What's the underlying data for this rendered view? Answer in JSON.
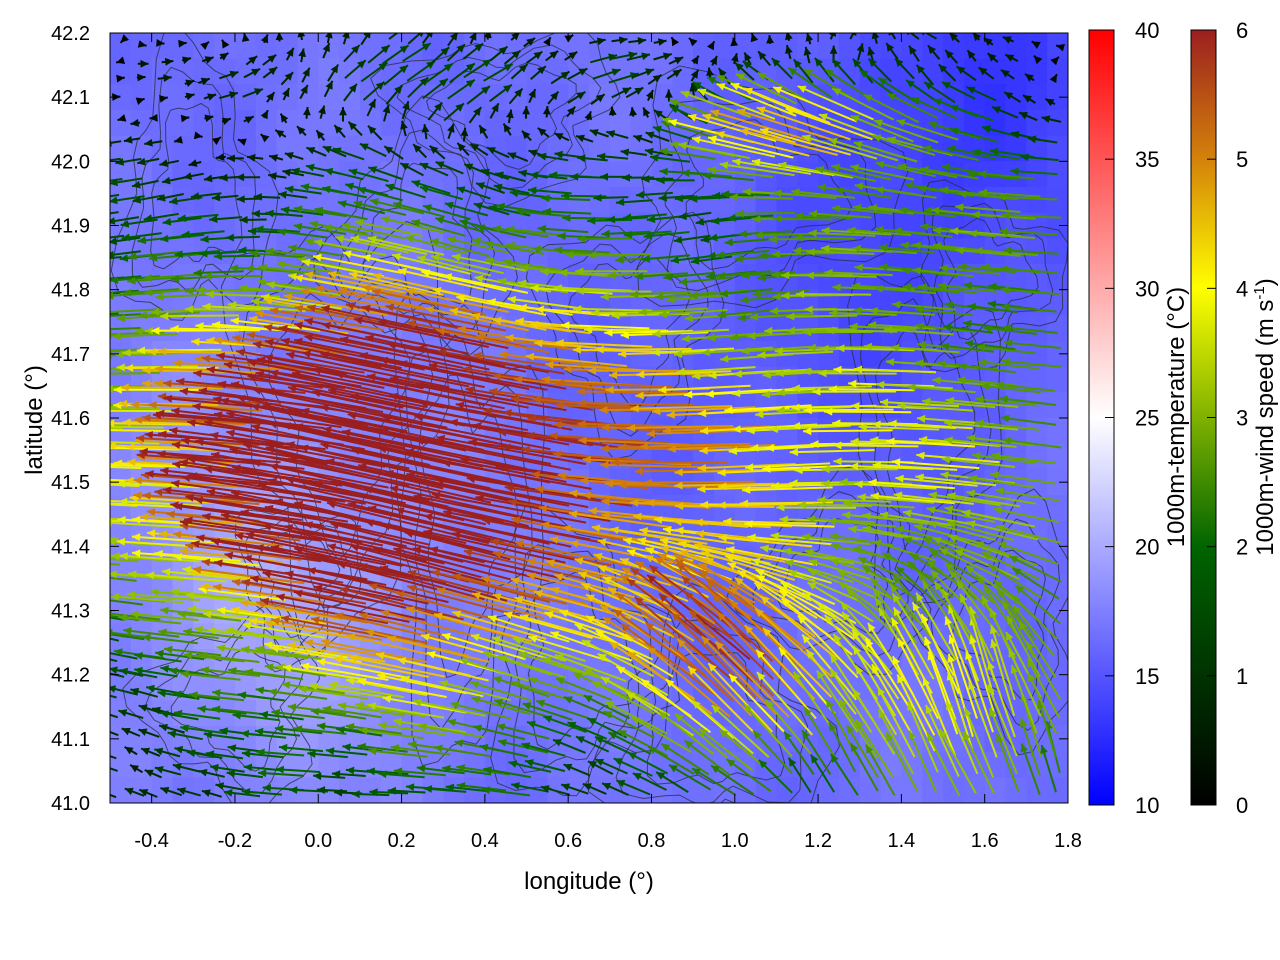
{
  "chart_data": {
    "type": "heatmap",
    "xlabel": "longitude (°)",
    "ylabel": "latitude (°)",
    "xlim": [
      -0.5,
      1.8
    ],
    "ylim": [
      41.0,
      42.2
    ],
    "x_ticks": [
      "-0.4",
      "-0.2",
      "0.0",
      "0.2",
      "0.4",
      "0.6",
      "0.8",
      "1.0",
      "1.2",
      "1.4",
      "1.6",
      "1.8"
    ],
    "y_ticks": [
      "41.0",
      "41.1",
      "41.2",
      "41.3",
      "41.4",
      "41.5",
      "41.6",
      "41.7",
      "41.8",
      "41.9",
      "42.0",
      "42.1",
      "42.2"
    ],
    "temperature_colorbar": {
      "label": "1000m-temperature (°C)",
      "range": [
        10,
        40
      ],
      "ticks": [
        "10",
        "15",
        "20",
        "25",
        "30",
        "35",
        "40"
      ],
      "colors": [
        "#0000ff",
        "#ffffff",
        "#ff0000"
      ]
    },
    "wind_colorbar": {
      "label_main": "1000m-wind speed (m s",
      "label_sup": "-1",
      "label_end": ")",
      "range": [
        0,
        6
      ],
      "ticks": [
        "0",
        "1",
        "2",
        "3",
        "4",
        "5",
        "6"
      ],
      "colors": [
        "#000000",
        "#006400",
        "#ffff00",
        "#d4820a",
        "#9b1f1f"
      ]
    },
    "temperature_field_regions": [
      {
        "region": "west, lon -0.5 to 0.3, lat 41.0-41.7",
        "temperature_c": 20
      },
      {
        "region": "center, lon 0.3 to 1.0",
        "temperature_c": 17
      },
      {
        "region": "northeast, lon 1.2 to 1.8, lat 41.8-42.2",
        "temperature_c": 13
      },
      {
        "region": "southeast, lon 1.4 to 1.8, lat 41.0-41.3",
        "temperature_c": 17
      }
    ],
    "wind_field_regions": [
      {
        "region": "north strip, lat 42.0-42.2",
        "direction": "east / northeast",
        "speed_ms": 2.0
      },
      {
        "region": "central band, lat 41.3-41.8",
        "direction": "west",
        "speed_ms": 3.8
      },
      {
        "region": "west, lon -0.1 to 0.5",
        "direction": "northwest",
        "speed_ms": 5.5
      },
      {
        "region": "southeast, lon 1.2 to 1.8, lat 41.0-41.3",
        "direction": "north",
        "speed_ms": 4.0
      },
      {
        "region": "east, lon 1.3 to 1.8, lat 41.8-42.0",
        "direction": "west",
        "speed_ms": 1.5
      }
    ]
  }
}
